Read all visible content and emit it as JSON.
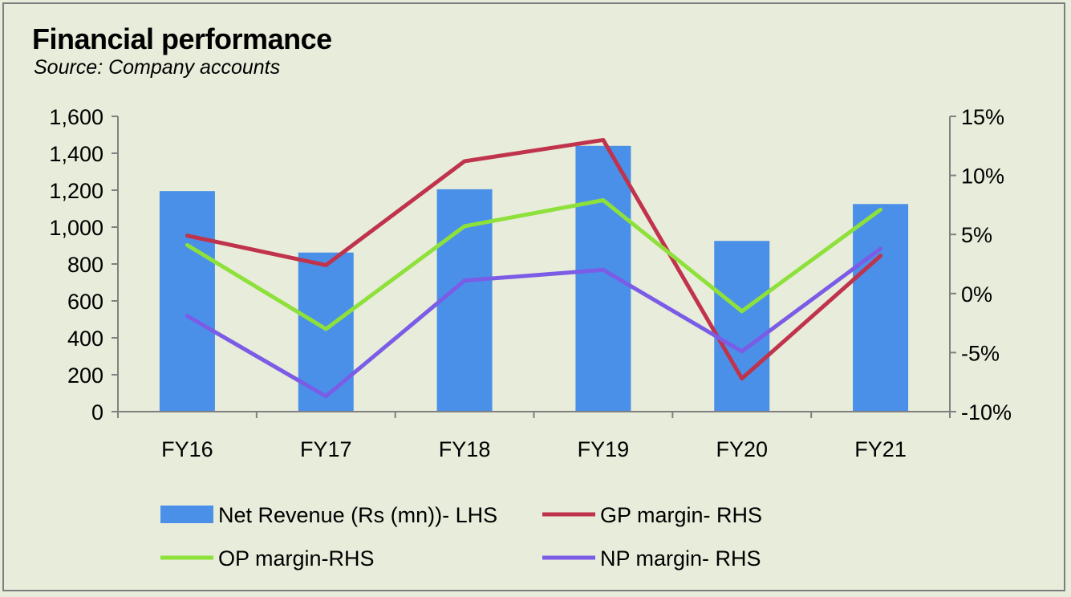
{
  "chart_data": {
    "type": "bar",
    "title": "Financial performance",
    "subtitle": "Source: Company accounts",
    "categories": [
      "FY16",
      "FY17",
      "FY18",
      "FY19",
      "FY20",
      "FY21"
    ],
    "y_left": {
      "ylim": [
        0,
        1600
      ],
      "ticks": [
        0,
        200,
        400,
        600,
        800,
        1000,
        1200,
        1400,
        1600
      ],
      "tick_labels": [
        "0",
        "200",
        "400",
        "600",
        "800",
        "1,000",
        "1,200",
        "1,400",
        "1,600"
      ]
    },
    "y_right": {
      "ylim": [
        -10,
        15
      ],
      "ticks": [
        -10,
        -5,
        0,
        5,
        10,
        15
      ],
      "tick_labels": [
        "-10%",
        "-5%",
        "0%",
        "5%",
        "10%",
        "15%"
      ]
    },
    "series": [
      {
        "name": "Net Revenue (Rs (mn))- LHS",
        "type": "bar",
        "axis": "left",
        "color": "#4a90e8",
        "values": [
          1195,
          862,
          1205,
          1440,
          925,
          1125
        ]
      },
      {
        "name": "GP margin- RHS",
        "type": "line",
        "axis": "right",
        "color": "#c0334c",
        "values": [
          4.9,
          2.4,
          11.2,
          13.0,
          -7.2,
          3.2
        ]
      },
      {
        "name": "OP margin-RHS",
        "type": "line",
        "axis": "right",
        "color": "#8ee03a",
        "values": [
          4.1,
          -3.0,
          5.7,
          7.9,
          -1.5,
          7.1
        ]
      },
      {
        "name": "NP margin- RHS",
        "type": "line",
        "axis": "right",
        "color": "#7a5ce6",
        "values": [
          -1.9,
          -8.7,
          1.1,
          2.0,
          -4.9,
          3.8
        ]
      }
    ],
    "grid": false,
    "legend_position": "bottom"
  }
}
